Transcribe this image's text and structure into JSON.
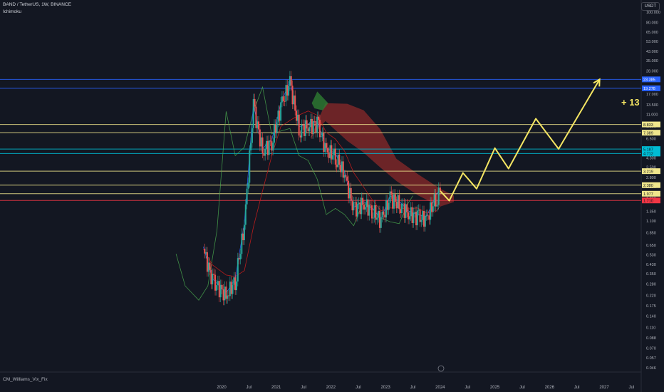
{
  "header": {
    "symbol_line": "BAND / TetherUS, 1W, BINANCE",
    "indicator": "Ichimoku"
  },
  "currency_badge": "USDT",
  "bottom_indicator": "CM_Williams_Vix_Fix",
  "annotation": "+ 13",
  "colors": {
    "background": "#131722",
    "up": "#26a69a",
    "down": "#ef5350",
    "cloud_bear": "#8b2a2a",
    "cloud_bull": "#2e7d32",
    "projection": "#f5e663",
    "level_yellow": "#f0e68c",
    "level_blue": "#2962ff",
    "level_cyan": "#00bcd4",
    "level_red": "#f23645"
  },
  "chart_data": {
    "type": "candlestick",
    "scale": "log",
    "y_ticks": [
      "100.000",
      "80.000",
      "65.000",
      "53.000",
      "43.000",
      "35.000",
      "28.000",
      "23.000",
      "17.000",
      "13.500",
      "11.000",
      "8.500",
      "6.500",
      "5.300",
      "4.300",
      "3.500",
      "2.800",
      "2.300",
      "1.800",
      "1.350",
      "1.100",
      "0.850",
      "0.650",
      "0.530",
      "0.430",
      "0.350",
      "0.280",
      "0.220",
      "0.175",
      "0.140",
      "0.110",
      "0.088",
      "0.070",
      "0.057",
      "0.046"
    ],
    "x_ticks": [
      "2020",
      "Jul",
      "2021",
      "Jul",
      "2022",
      "Jul",
      "2023",
      "Jul",
      "2024",
      "Jul",
      "2025",
      "Jul",
      "2026",
      "Jul",
      "2027",
      "Jul"
    ],
    "levels": [
      {
        "label": "23.385",
        "value": 23.385,
        "color": "#2962ff"
      },
      {
        "label": "19.278",
        "value": 19.278,
        "color": "#2962ff"
      },
      {
        "label": "8.833",
        "value": 8.833,
        "color": "#f0e68c"
      },
      {
        "label": "7.389",
        "value": 7.389,
        "color": "#f0e68c"
      },
      {
        "label": "5.187",
        "value": 5.187,
        "color": "#00bcd4"
      },
      {
        "label": "4.712",
        "value": 4.712,
        "color": "#00bcd4"
      },
      {
        "label": "3.219",
        "value": 3.219,
        "color": "#f0e68c"
      },
      {
        "label": "2.380",
        "value": 2.38,
        "color": "#f0e68c"
      },
      {
        "label": "1.977",
        "value": 1.977,
        "color": "#f0e68c"
      },
      {
        "label": "1.710",
        "value": 1.71,
        "color": "#f23645"
      }
    ],
    "price_path": [
      [
        "2019-09",
        0.6
      ],
      [
        "2019-11",
        0.3
      ],
      [
        "2020-02",
        0.22
      ],
      [
        "2020-04",
        0.3
      ],
      [
        "2020-06",
        1.0
      ],
      [
        "2020-08",
        13.0
      ],
      [
        "2020-10",
        5.0
      ],
      [
        "2020-12",
        6.0
      ],
      [
        "2021-02",
        13.0
      ],
      [
        "2021-04",
        22.0
      ],
      [
        "2021-06",
        8.0
      ],
      [
        "2021-08",
        8.5
      ],
      [
        "2021-10",
        9.0
      ],
      [
        "2021-12",
        5.0
      ],
      [
        "2022-02",
        4.5
      ],
      [
        "2022-04",
        3.0
      ],
      [
        "2022-06",
        1.4
      ],
      [
        "2022-08",
        1.6
      ],
      [
        "2022-10",
        1.4
      ],
      [
        "2022-12",
        1.1
      ],
      [
        "2023-02",
        1.8
      ],
      [
        "2023-04",
        1.6
      ],
      [
        "2023-06",
        1.3
      ],
      [
        "2023-08",
        1.2
      ],
      [
        "2023-10",
        1.15
      ],
      [
        "2023-12",
        1.8
      ],
      [
        "2024-01",
        2.1
      ]
    ],
    "projection": [
      [
        "2024-01",
        2.1
      ],
      [
        "2024-03",
        1.7
      ],
      [
        "2024-06",
        3.1
      ],
      [
        "2024-09",
        2.2
      ],
      [
        "2025-01",
        5.3
      ],
      [
        "2025-04",
        3.4
      ],
      [
        "2025-10",
        10.0
      ],
      [
        "2026-03",
        5.2
      ],
      [
        "2026-12",
        23.385
      ]
    ]
  }
}
